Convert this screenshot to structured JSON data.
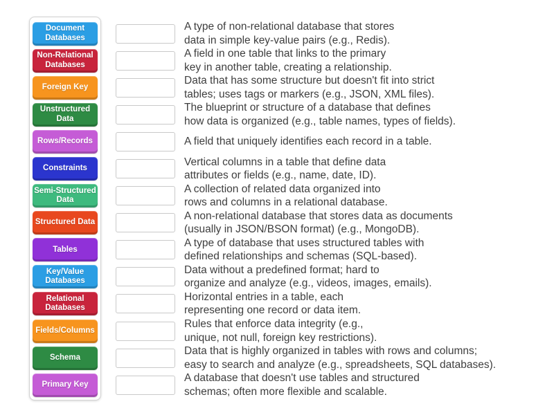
{
  "page": {
    "background": "#ffffff",
    "text_color": "#3e3e3e"
  },
  "activity": {
    "kind": "match-up",
    "pairs": [
      {
        "term": "Document Databases",
        "color": "#2B9EE4",
        "definition": "A type of non-relational database that stores\ndata in simple key-value pairs (e.g., Redis)."
      },
      {
        "term": "Non-Relational Databases",
        "color": "#C8243C",
        "definition": "A field in one table that links to the primary\nkey in another table, creating a relationship."
      },
      {
        "term": "Foreign Key",
        "color": "#F7941E",
        "definition": "Data that has some structure but doesn't fit into strict\ntables; uses tags or markers (e.g., JSON, XML files)."
      },
      {
        "term": "Unstructured Data",
        "color": "#2E8B44",
        "definition": "The blueprint or structure of a database that defines\nhow data is organized (e.g., table names, types of fields)."
      },
      {
        "term": "Rows/Records",
        "color": "#C55CD6",
        "definition": "A field that uniquely identifies each record in a table."
      },
      {
        "term": "Constraints",
        "color": "#2B35CE",
        "definition": "Vertical columns in a table that define data\nattributes or fields (e.g., name, date, ID)."
      },
      {
        "term": "Semi-Structured Data",
        "color": "#3EBA7E",
        "definition": "A collection of related data organized into\nrows and columns in a relational database."
      },
      {
        "term": "Structured Data",
        "color": "#E8481E",
        "definition": "A non-relational database that stores data as documents\n(usually in JSON/BSON format) (e.g., MongoDB)."
      },
      {
        "term": "Tables",
        "color": "#9031D8",
        "definition": "A type of database that uses structured tables with\ndefined relationships and schemas (SQL-based)."
      },
      {
        "term": "Key/Value Databases",
        "color": "#2B9EE4",
        "definition": "Data without a predefined format; hard to\norganize and analyze (e.g., videos, images, emails)."
      },
      {
        "term": "Relational Databases",
        "color": "#C8243C",
        "definition": "Horizontal entries in a table, each\nrepresenting one record or data item."
      },
      {
        "term": "Fields/Columns",
        "color": "#F7941E",
        "definition": "Rules that enforce data integrity (e.g.,\nunique, not null, foreign key restrictions)."
      },
      {
        "term": "Schema",
        "color": "#2E8B44",
        "definition": "Data that is highly organized in tables with rows and columns;\neasy to search and analyze (e.g., spreadsheets, SQL databases)."
      },
      {
        "term": "Primary Key",
        "color": "#C55CD6",
        "definition": "A database that doesn't use tables and structured\nschemas; often more flexible and scalable."
      }
    ]
  }
}
